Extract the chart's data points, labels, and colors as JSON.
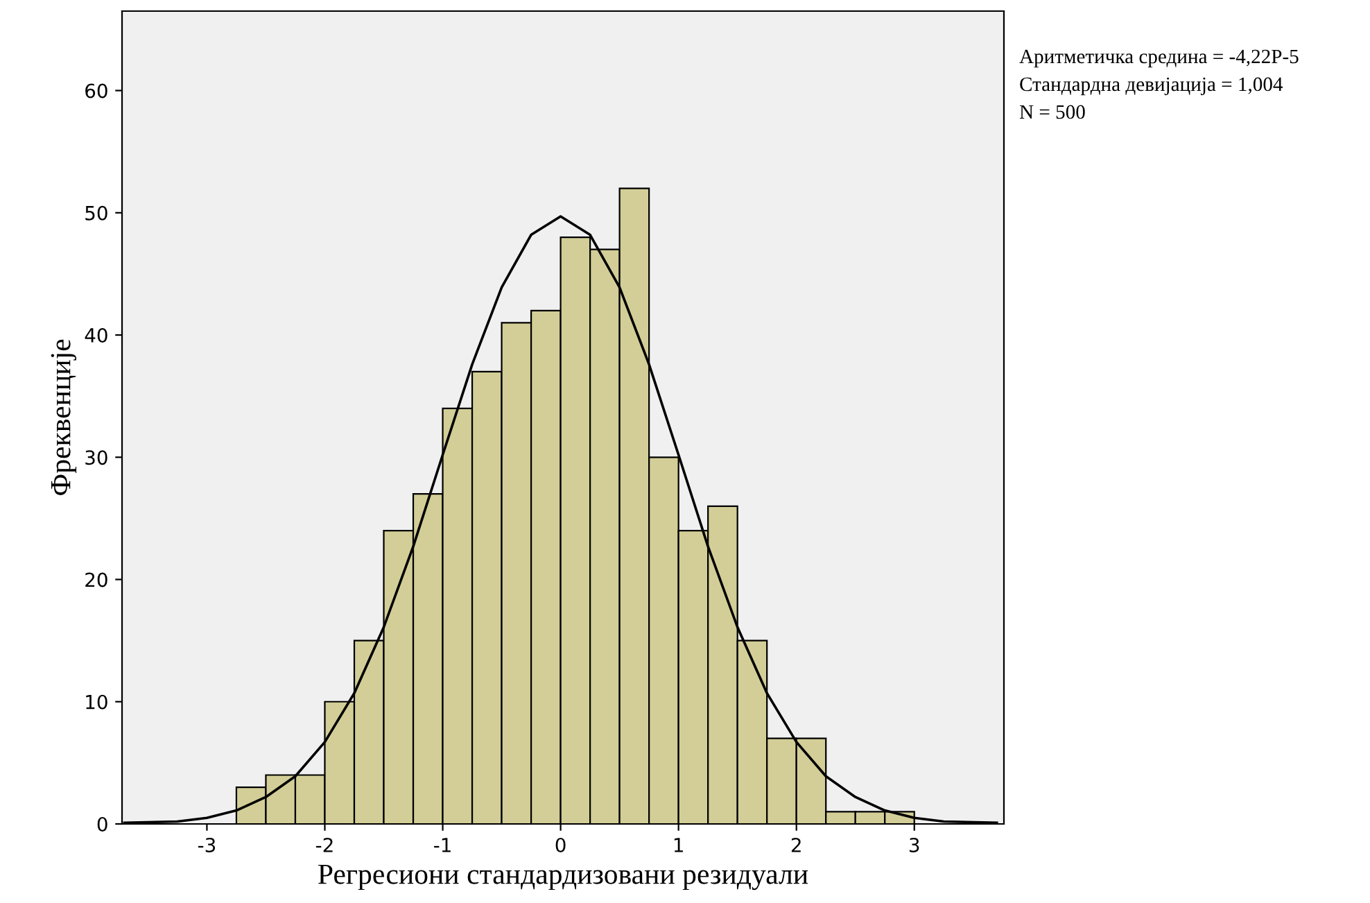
{
  "chart_data": {
    "type": "histogram",
    "xlabel": "Регресиони стандардизовани резидуали",
    "ylabel": "Фреквенције",
    "annotations": [
      "Аритметичка средина = -4,22Р-5",
      "Стандардна девијација = 1,004",
      "N = 500"
    ],
    "series": [
      {
        "color": "#d3ce97",
        "bins": [
          -2.75,
          -2.5,
          -2.25,
          -2.0,
          -1.75,
          -1.5,
          -1.25,
          -1.0,
          -0.75,
          -0.5,
          -0.25,
          0.0,
          0.25,
          0.5,
          0.75,
          1.0,
          1.25,
          1.5,
          1.75,
          2.0,
          2.25,
          2.5,
          2.75,
          3.0
        ],
        "values": [
          3,
          4,
          4,
          10,
          15,
          24,
          27,
          34,
          37,
          41,
          42,
          48,
          47,
          52,
          30,
          24,
          26,
          15,
          7,
          7,
          1,
          1,
          1
        ]
      },
      {
        "type": "line",
        "color": "#000000",
        "x": [
          -3.7,
          -3.25,
          -3.0,
          -2.75,
          -2.5,
          -2.25,
          -2.0,
          -1.75,
          -1.5,
          -1.25,
          -1.0,
          -0.75,
          -0.5,
          -0.25,
          0.0,
          0.25,
          0.5,
          0.75,
          1.0,
          1.25,
          1.5,
          1.75,
          2.0,
          2.25,
          2.5,
          2.75,
          3.0,
          3.25,
          3.7
        ],
        "values": [
          0.1,
          0.2,
          0.5,
          1.1,
          2.2,
          3.9,
          6.7,
          10.7,
          16.1,
          22.7,
          30.2,
          37.6,
          43.9,
          48.2,
          49.7,
          48.2,
          43.9,
          37.6,
          30.2,
          22.7,
          16.1,
          10.7,
          6.7,
          3.9,
          2.2,
          1.1,
          0.5,
          0.2,
          0.1
        ]
      }
    ],
    "xlim": [
      -3.72,
      3.76
    ],
    "ylim": [
      0,
      66.5
    ],
    "xticks": [
      -3,
      -2,
      -1,
      0,
      1,
      2,
      3
    ],
    "yticks": [
      0,
      10,
      20,
      30,
      40,
      50,
      60
    ],
    "grid": false,
    "legend": false
  }
}
